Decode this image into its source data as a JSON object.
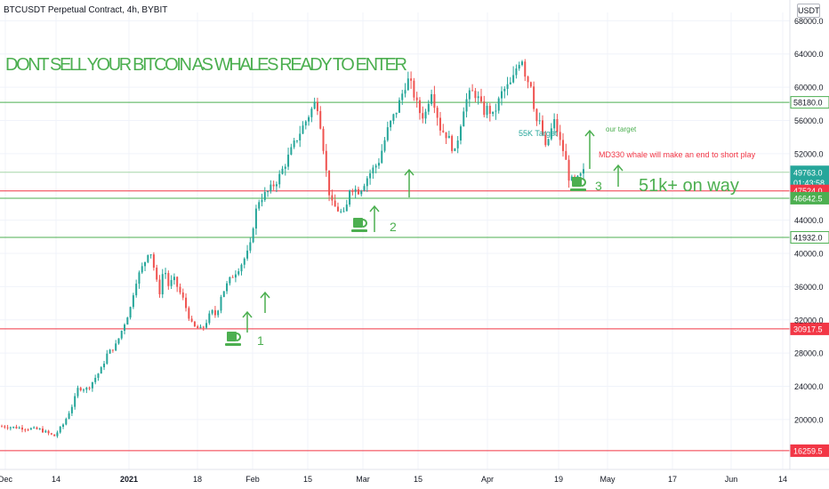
{
  "header": {
    "symbol_title": "BTCUSDT Perpetual Contract, 4h, BYBIT",
    "currency_button": "USDT"
  },
  "chart_data": {
    "type": "candlestick",
    "title": "DONT SELL YOUR BITCOIN AS WHALES READY TO ENTER",
    "ylim": [
      14000,
      69000
    ],
    "y_ticks": [
      20000,
      24000,
      28000,
      32000,
      36000,
      40000,
      44000,
      52000,
      56000,
      60000,
      64000,
      68000
    ],
    "x_labels": [
      "Dec",
      "14",
      "2021",
      "18",
      "Feb",
      "15",
      "Mar",
      "15",
      "Apr",
      "19",
      "May",
      "17",
      "Jun",
      "14"
    ],
    "price_path": [
      [
        0,
        19200
      ],
      [
        4,
        19000
      ],
      [
        8,
        18800
      ],
      [
        11,
        18000
      ],
      [
        13,
        19500
      ],
      [
        15,
        22000
      ],
      [
        16,
        23800
      ],
      [
        18,
        23700
      ],
      [
        21,
        26200
      ],
      [
        22,
        27800
      ],
      [
        24,
        29000
      ],
      [
        26,
        32000
      ],
      [
        27,
        33500
      ],
      [
        28,
        36500
      ],
      [
        30,
        39000
      ],
      [
        31,
        40800
      ],
      [
        32,
        38000
      ],
      [
        33,
        35000
      ],
      [
        34,
        38500
      ],
      [
        35,
        36000
      ],
      [
        36,
        37000
      ],
      [
        38,
        34500
      ],
      [
        40,
        31200
      ],
      [
        42,
        30800
      ],
      [
        44,
        33000
      ],
      [
        45,
        32500
      ],
      [
        46,
        35000
      ],
      [
        48,
        37000
      ],
      [
        50,
        38500
      ],
      [
        52,
        40500
      ],
      [
        53,
        44500
      ],
      [
        54,
        46500
      ],
      [
        56,
        47500
      ],
      [
        58,
        49000
      ],
      [
        60,
        51500
      ],
      [
        62,
        54000
      ],
      [
        64,
        56200
      ],
      [
        66,
        58500
      ],
      [
        67,
        55000
      ],
      [
        68,
        50000
      ],
      [
        69,
        46000
      ],
      [
        71,
        45000
      ],
      [
        72,
        44500
      ],
      [
        73,
        48000
      ],
      [
        75,
        47500
      ],
      [
        77,
        49500
      ],
      [
        79,
        51000
      ],
      [
        81,
        55000
      ],
      [
        83,
        57500
      ],
      [
        85,
        61000
      ],
      [
        86,
        60000
      ],
      [
        87,
        58000
      ],
      [
        88,
        56500
      ],
      [
        89,
        57000
      ],
      [
        90,
        60000
      ],
      [
        91,
        57500
      ],
      [
        92,
        55000
      ],
      [
        93,
        54500
      ],
      [
        94,
        53500
      ],
      [
        95,
        52000
      ],
      [
        96,
        55000
      ],
      [
        97,
        58000
      ],
      [
        98,
        59000
      ],
      [
        99,
        59500
      ],
      [
        100,
        58500
      ],
      [
        101,
        57000
      ],
      [
        102,
        57500
      ],
      [
        103,
        56500
      ],
      [
        104,
        58000
      ],
      [
        105,
        59500
      ],
      [
        107,
        60500
      ],
      [
        108,
        62500
      ],
      [
        109,
        63800
      ],
      [
        110,
        61000
      ],
      [
        111,
        60500
      ],
      [
        112,
        56000
      ],
      [
        113,
        55500
      ],
      [
        114,
        52500
      ],
      [
        115,
        54500
      ],
      [
        116,
        56000
      ],
      [
        117,
        53500
      ],
      [
        118,
        52000
      ],
      [
        119,
        49000
      ],
      [
        120,
        48500
      ],
      [
        121,
        49000
      ],
      [
        122,
        49763
      ]
    ],
    "horizontal_levels": [
      {
        "price": 58180.0,
        "label": "58180.0",
        "color": "#4caf50",
        "style": "box"
      },
      {
        "price": 49763.0,
        "label": "49763.0",
        "sublabel": "01:43:58",
        "color": "#26a69a",
        "style": "solid"
      },
      {
        "price": 47524.0,
        "label": "47524.0",
        "color": "#f23645",
        "style": "solid"
      },
      {
        "price": 46642.5,
        "label": "46642.5",
        "color": "#4caf50",
        "style": "solid"
      },
      {
        "price": 41932.0,
        "label": "41932.0",
        "color": "#4caf50",
        "style": "box"
      },
      {
        "price": 30917.5,
        "label": "30917.5",
        "color": "#f23645",
        "style": "solid"
      },
      {
        "price": 16259.5,
        "label": "16259.5",
        "color": "#f23645",
        "style": "solid"
      }
    ],
    "annotations": {
      "target_55k": "55K Target",
      "our_target": "our target",
      "whale_note": "MD330 whale will make an end to short play",
      "on_way": "51k+ on way",
      "markers": [
        "1",
        "2",
        "3"
      ]
    },
    "colors": {
      "up": "#26a69a",
      "down": "#ef5350",
      "annotation_green": "#4caf50",
      "annotation_red": "#f23645",
      "title_green": "#4caf50"
    }
  }
}
